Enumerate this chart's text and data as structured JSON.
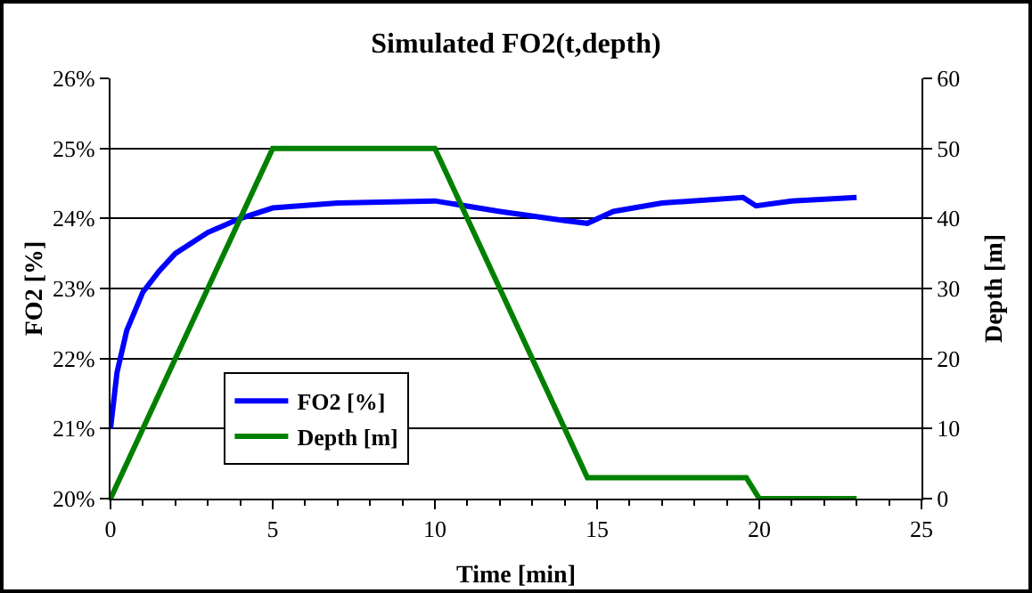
{
  "chart_data": {
    "type": "line",
    "title": "Simulated FO2(t,depth)",
    "xlabel": "Time [min]",
    "ylabel": "FO2 [%]",
    "y2label": "Depth [m]",
    "xlim": [
      0,
      25
    ],
    "xticks": [
      0,
      5,
      10,
      15,
      20,
      25
    ],
    "ylim": [
      20,
      26
    ],
    "yticks": [
      {
        "value": 20,
        "label": "20%"
      },
      {
        "value": 21,
        "label": "21%"
      },
      {
        "value": 22,
        "label": "22%"
      },
      {
        "value": 23,
        "label": "23%"
      },
      {
        "value": 24,
        "label": "24%"
      },
      {
        "value": 25,
        "label": "25%"
      },
      {
        "value": 26,
        "label": "26%"
      }
    ],
    "y2lim": [
      0,
      60
    ],
    "y2ticks": [
      0,
      10,
      20,
      30,
      40,
      50,
      60
    ],
    "grid": "y",
    "legend": "bottom left",
    "marker": "none",
    "line_style": "solid",
    "series": [
      {
        "name": "FO2 [%]",
        "color": "#0000ff",
        "x": [
          0,
          0.2,
          0.5,
          1,
          1.5,
          2,
          3,
          4,
          5,
          7,
          10,
          12,
          14,
          14.7,
          15.5,
          17,
          19.5,
          19.9,
          21,
          23
        ],
        "values": [
          21,
          21.8,
          22.4,
          22.95,
          23.25,
          23.5,
          23.8,
          24.0,
          24.15,
          24.22,
          24.25,
          24.1,
          23.97,
          23.93,
          24.1,
          24.22,
          24.3,
          24.18,
          24.25,
          24.3
        ]
      },
      {
        "name": "Depth [m]",
        "color": "#008000",
        "axis": "y2",
        "x": [
          0,
          5,
          10,
          14.7,
          19.6,
          20,
          23
        ],
        "values": [
          0,
          50,
          50,
          3,
          3,
          0,
          0
        ]
      }
    ]
  }
}
